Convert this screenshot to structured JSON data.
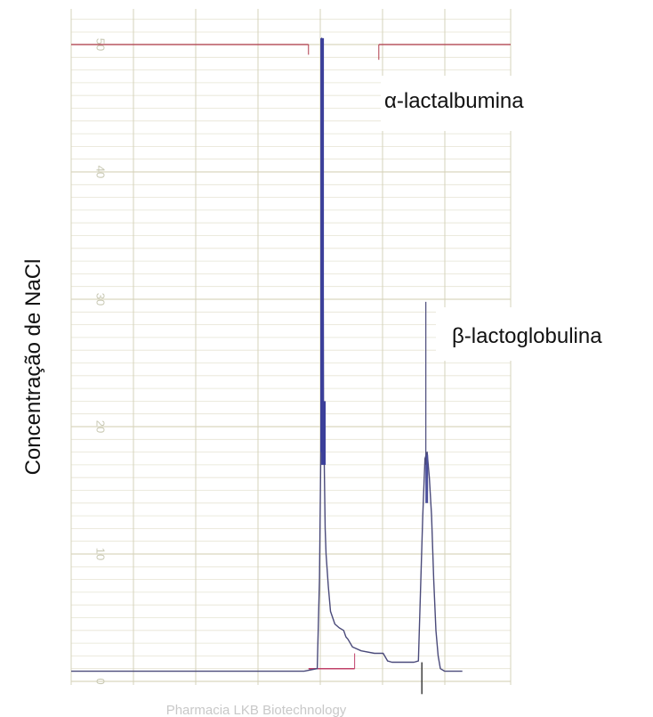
{
  "chart_data": {
    "type": "line",
    "ylabel": "Concentração de NaCl",
    "footer_text": "Pharmacia LKB Biotechnology",
    "y_ticks": [
      "0",
      "10",
      "20",
      "30",
      "40",
      "50"
    ],
    "ylim": [
      0,
      50
    ],
    "grid": true,
    "annotations": [
      {
        "text": "α-lactalbumina",
        "x": 57,
        "y": 50
      },
      {
        "text": "β-lactoglobulina",
        "x": 80,
        "y": 29.5
      }
    ],
    "series": [
      {
        "x": [
          0,
          52,
          53,
          56,
          56.5,
          56.8,
          57,
          57.2,
          57.4,
          57.6,
          57.8,
          58,
          58.5,
          59,
          60,
          61,
          62,
          62.5,
          63,
          64,
          66,
          69,
          71,
          72,
          73,
          74,
          75,
          76,
          77,
          78,
          79,
          80,
          80.5,
          81,
          81.5,
          82,
          82.5,
          83,
          83.5,
          84,
          85,
          86,
          89
        ],
        "y": [
          0.8,
          0.8,
          0.8,
          1.0,
          8,
          18,
          50.5,
          50,
          22,
          17,
          12,
          10,
          7.5,
          5.5,
          4.5,
          4.2,
          4.0,
          3.5,
          3.3,
          2.7,
          2.4,
          2.2,
          2.2,
          1.6,
          1.5,
          1.5,
          1.5,
          1.5,
          1.5,
          1.5,
          1.6,
          13,
          17.5,
          18,
          16,
          13,
          8,
          4,
          2,
          1.0,
          0.8,
          0.8,
          0.8
        ]
      }
    ]
  }
}
